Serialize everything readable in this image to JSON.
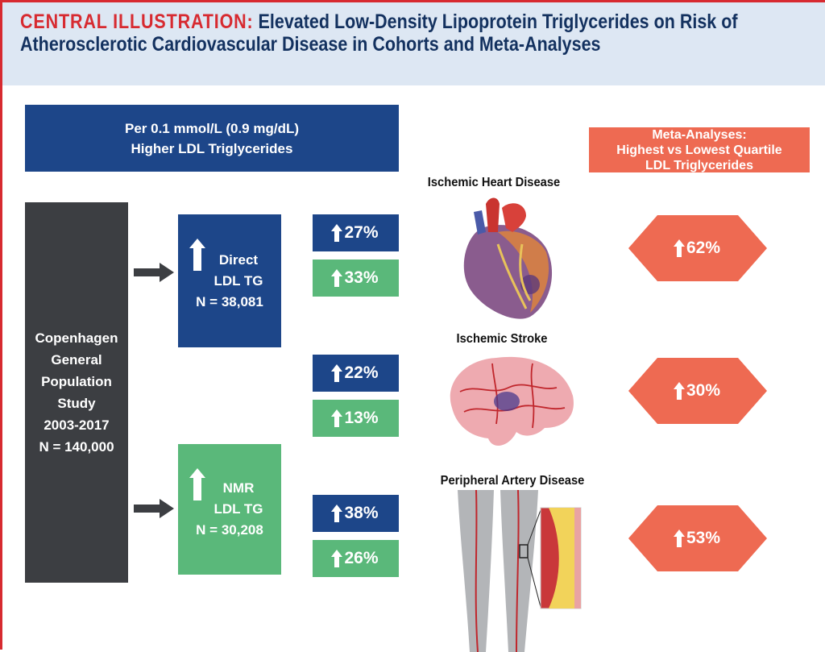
{
  "header": {
    "label": "CENTRAL ILLUSTRATION:",
    "title": "Elevated Low-Density Lipoprotein Triglycerides on Risk of Atherosclerotic Cardiovascular Disease in Cohorts and Meta-Analyses"
  },
  "left_header": {
    "line1": "Per 0.1 mmol/L (0.9 mg/dL)",
    "line2": "Higher LDL Triglycerides"
  },
  "right_header": {
    "line1": "Meta-Analyses:",
    "line2": "Highest vs Lowest Quartile",
    "line3": "LDL Triglycerides"
  },
  "cohort": {
    "lines": [
      "Copenhagen",
      "General",
      "Population",
      "Study",
      "2003-2017",
      "N = 140,000"
    ]
  },
  "direct": {
    "line1": "Direct",
    "line2": "LDL TG",
    "n": "N = 38,081"
  },
  "nmr": {
    "line1": "NMR",
    "line2": "LDL TG",
    "n": "N = 30,208"
  },
  "results": {
    "ihd_direct": "27%",
    "ihd_nmr": "33%",
    "stroke_direct": "22%",
    "stroke_nmr": "13%",
    "pad_direct": "38%",
    "pad_nmr": "26%"
  },
  "diseases": {
    "ihd": "Ischemic Heart Disease",
    "stroke": "Ischemic Stroke",
    "pad": "Peripheral Artery Disease"
  },
  "meta": {
    "ihd": "62%",
    "stroke": "30%",
    "pad": "53%"
  },
  "colors": {
    "navy": "#1d4689",
    "green": "#5ab87a",
    "orange": "#ee6a52",
    "gray": "#3c3e42",
    "red": "#d72a30"
  }
}
